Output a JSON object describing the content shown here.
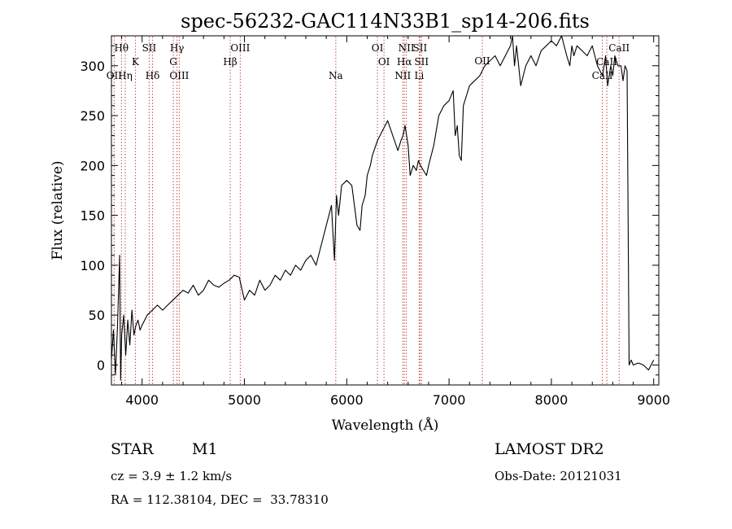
{
  "chart_data": {
    "type": "line",
    "title": "spec-56232-GAC114N33B1_sp14-206.fits",
    "xlabel": "Wavelength (Å)",
    "ylabel": "Flux (relative)",
    "xlim": [
      3700,
      9050
    ],
    "ylim": [
      -20,
      330
    ],
    "xticks": [
      4000,
      5000,
      6000,
      7000,
      8000,
      9000
    ],
    "yticks": [
      0,
      50,
      100,
      150,
      200,
      250,
      300
    ],
    "series": [
      {
        "x": [
          3700,
          3720,
          3740,
          3760,
          3780,
          3790,
          3800,
          3820,
          3840,
          3860,
          3880,
          3900,
          3920,
          3940,
          3960,
          3980,
          4000,
          4050,
          4100,
          4150,
          4200,
          4250,
          4300,
          4350,
          4400,
          4450,
          4500,
          4550,
          4600,
          4650,
          4700,
          4750,
          4800,
          4850,
          4900,
          4950,
          5000,
          5050,
          5100,
          5150,
          5200,
          5250,
          5300,
          5350,
          5400,
          5450,
          5500,
          5550,
          5600,
          5650,
          5700,
          5750,
          5800,
          5850,
          5880,
          5900,
          5920,
          5950,
          6000,
          6050,
          6100,
          6130,
          6150,
          6180,
          6200,
          6230,
          6250,
          6300,
          6350,
          6400,
          6450,
          6500,
          6530,
          6550,
          6570,
          6600,
          6620,
          6650,
          6680,
          6700,
          6720,
          6750,
          6780,
          6800,
          6850,
          6900,
          6950,
          7000,
          7040,
          7060,
          7080,
          7100,
          7120,
          7140,
          7170,
          7200,
          7250,
          7300,
          7350,
          7400,
          7450,
          7500,
          7550,
          7600,
          7620,
          7640,
          7660,
          7680,
          7700,
          7750,
          7800,
          7850,
          7900,
          7950,
          8000,
          8050,
          8100,
          8150,
          8180,
          8200,
          8220,
          8250,
          8300,
          8350,
          8400,
          8450,
          8500,
          8530,
          8550,
          8580,
          8600,
          8620,
          8650,
          8680,
          8700,
          8720,
          8740,
          8760,
          8780,
          8800,
          8850,
          8900,
          8950,
          9000
        ],
        "y": [
          5,
          35,
          -10,
          40,
          110,
          -15,
          30,
          50,
          10,
          45,
          20,
          55,
          30,
          40,
          45,
          35,
          40,
          50,
          55,
          60,
          55,
          60,
          65,
          70,
          75,
          72,
          80,
          70,
          75,
          85,
          80,
          78,
          82,
          85,
          90,
          88,
          65,
          75,
          70,
          85,
          75,
          80,
          90,
          85,
          95,
          90,
          100,
          95,
          105,
          110,
          100,
          120,
          140,
          160,
          105,
          170,
          150,
          180,
          185,
          180,
          140,
          135,
          160,
          170,
          190,
          200,
          210,
          225,
          235,
          245,
          230,
          215,
          225,
          230,
          240,
          220,
          190,
          200,
          195,
          205,
          200,
          195,
          190,
          200,
          220,
          250,
          260,
          265,
          275,
          230,
          240,
          210,
          205,
          260,
          270,
          280,
          285,
          290,
          300,
          305,
          310,
          300,
          310,
          320,
          330,
          300,
          320,
          300,
          280,
          300,
          310,
          300,
          315,
          320,
          325,
          320,
          330,
          310,
          300,
          320,
          310,
          320,
          315,
          310,
          320,
          300,
          290,
          310,
          280,
          300,
          290,
          310,
          300,
          300,
          285,
          300,
          295,
          0,
          5,
          0,
          2,
          0,
          -5,
          5
        ]
      }
    ],
    "lines_top": [
      {
        "label": "Hθ",
        "x": 3798,
        "row": 1
      },
      {
        "label": "K",
        "x": 3934,
        "row": 2
      },
      {
        "label": "SII",
        "x": 4069,
        "row": 1
      },
      {
        "label": "Hγ",
        "x": 4341,
        "row": 1
      },
      {
        "label": "G",
        "x": 4305,
        "row": 2
      },
      {
        "label": "OIII",
        "x": 4959,
        "row": 1
      },
      {
        "label": "Hβ",
        "x": 4861,
        "row": 2
      },
      {
        "label": "OI",
        "x": 6300,
        "row": 1
      },
      {
        "label": "OI",
        "x": 6364,
        "row": 2
      },
      {
        "label": "NII",
        "x": 6583,
        "row": 1
      },
      {
        "label": "SII",
        "x": 6716,
        "row": 1
      },
      {
        "label": "Hα",
        "x": 6563,
        "row": 2
      },
      {
        "label": "SII",
        "x": 6731,
        "row": 2
      },
      {
        "label": "CaII",
        "x": 8662,
        "row": 1
      },
      {
        "label": "CaII",
        "x": 8542,
        "row": 2
      }
    ],
    "lines_bottom": [
      {
        "label": "OII",
        "x": 3727,
        "row": 1
      },
      {
        "label": "Hη",
        "x": 3835,
        "row": 1
      },
      {
        "label": "Hδ",
        "x": 4102,
        "row": 1
      },
      {
        "label": "OIII",
        "x": 4363,
        "row": 1
      },
      {
        "label": "Na",
        "x": 5893,
        "row": 1
      },
      {
        "label": "NII",
        "x": 6548,
        "row": 1
      },
      {
        "label": "Li",
        "x": 6708,
        "row": 1
      },
      {
        "label": "OII",
        "x": 7325,
        "row": 0
      },
      {
        "label": "CaII",
        "x": 8498,
        "row": 1
      }
    ]
  },
  "info": {
    "object_type": "STAR",
    "subclass": "M1",
    "survey": "LAMOST DR2",
    "cz": "cz = 3.9 ± 1.2 km/s",
    "obs_date": "Obs-Date: 20121031",
    "coords": "RA = 112.38104, DEC =  33.78310"
  }
}
